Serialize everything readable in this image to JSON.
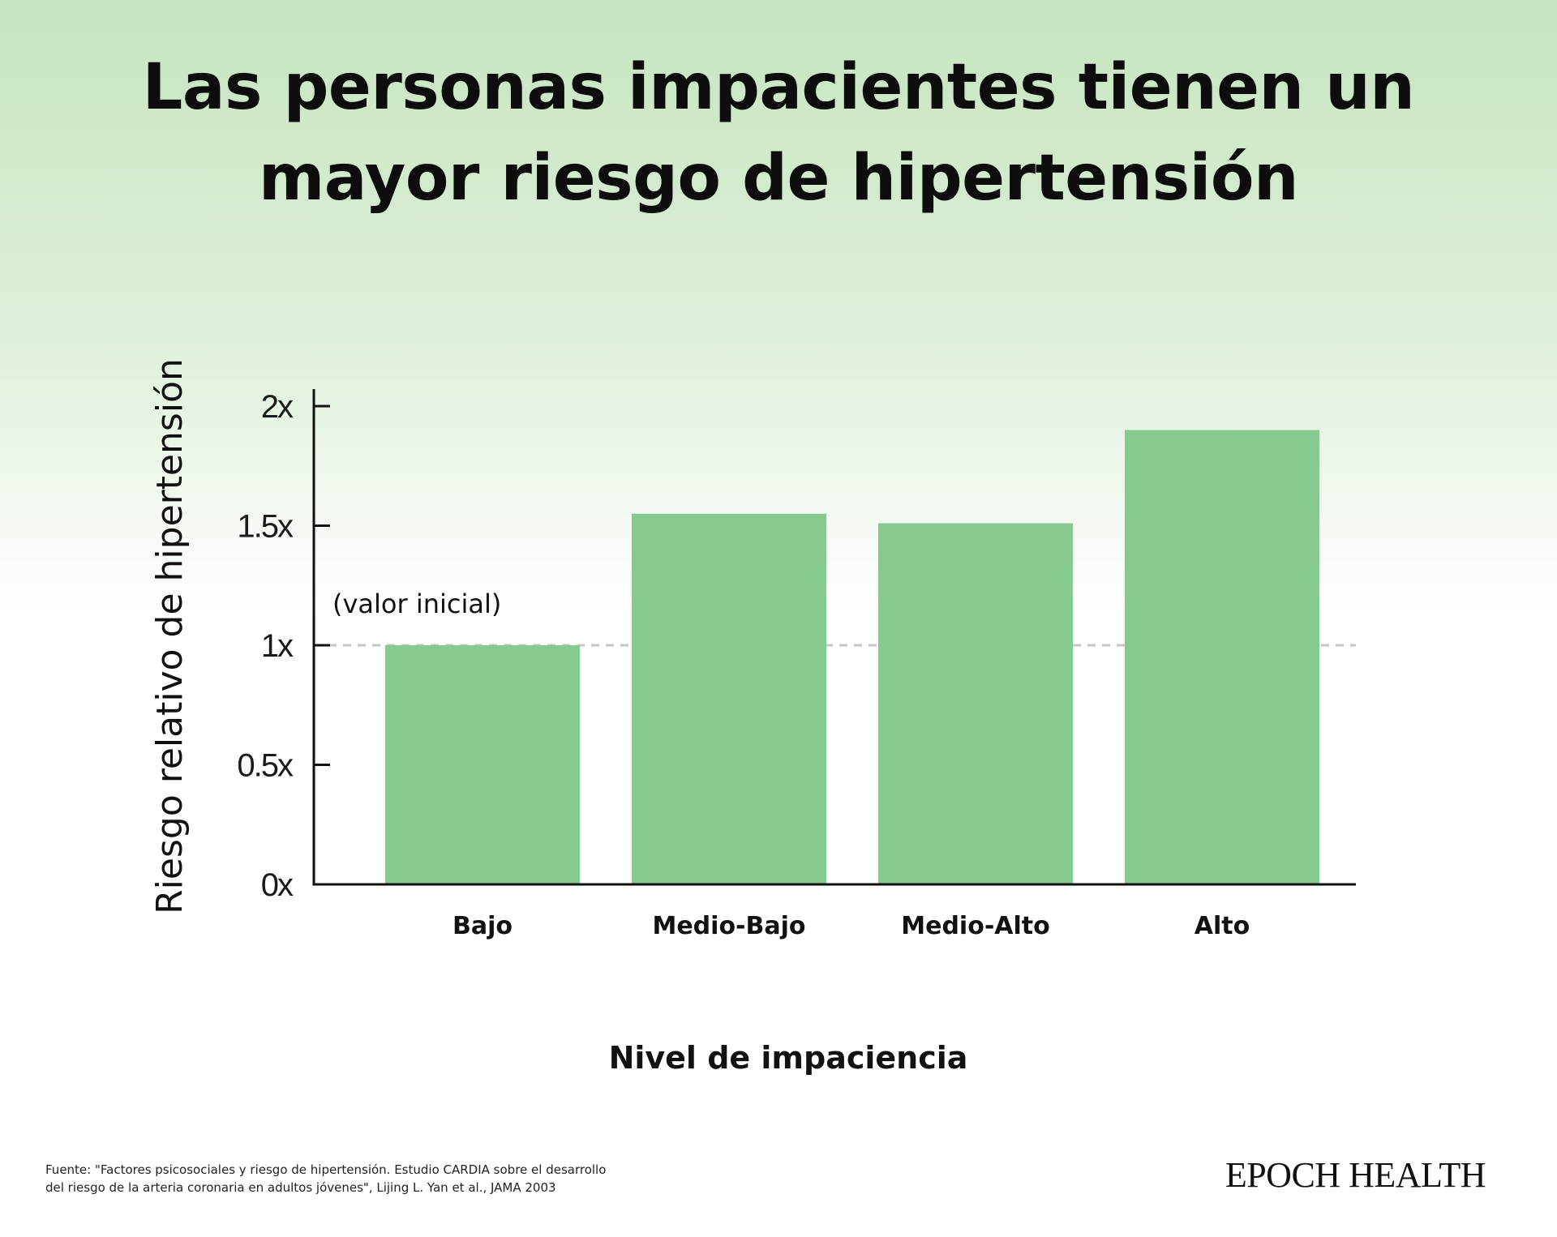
{
  "chart_data": {
    "type": "bar",
    "title": "Las personas impacientes tienen un mayor riesgo de hipertensión",
    "categories": [
      "Bajo",
      "Medio-Bajo",
      "Medio-Alto",
      "Alto"
    ],
    "values": [
      1.0,
      1.55,
      1.51,
      1.9
    ],
    "ylabel": "Riesgo relativo de hipertensión",
    "xlabel": "Nivel de impaciencia",
    "ylim": [
      0,
      2
    ],
    "yticks": [
      0,
      0.5,
      1,
      1.5,
      2
    ],
    "ytick_labels": [
      "0x",
      "0.5x",
      "1x",
      "1.5x",
      "2x"
    ],
    "reference_line": {
      "y": 1,
      "style": "dashed"
    },
    "annotation": "(valor inicial)",
    "bar_color": "#86ca90",
    "grid": false
  },
  "source": {
    "line1": "Fuente: \"Factores psicosociales y riesgo de hipertensión. Estudio CARDIA sobre el desarrollo",
    "line2": "del riesgo de la arteria coronaria en adultos jóvenes\", Lijing L. Yan et al., JAMA 2003"
  },
  "brand": "EPOCH HEALTH"
}
